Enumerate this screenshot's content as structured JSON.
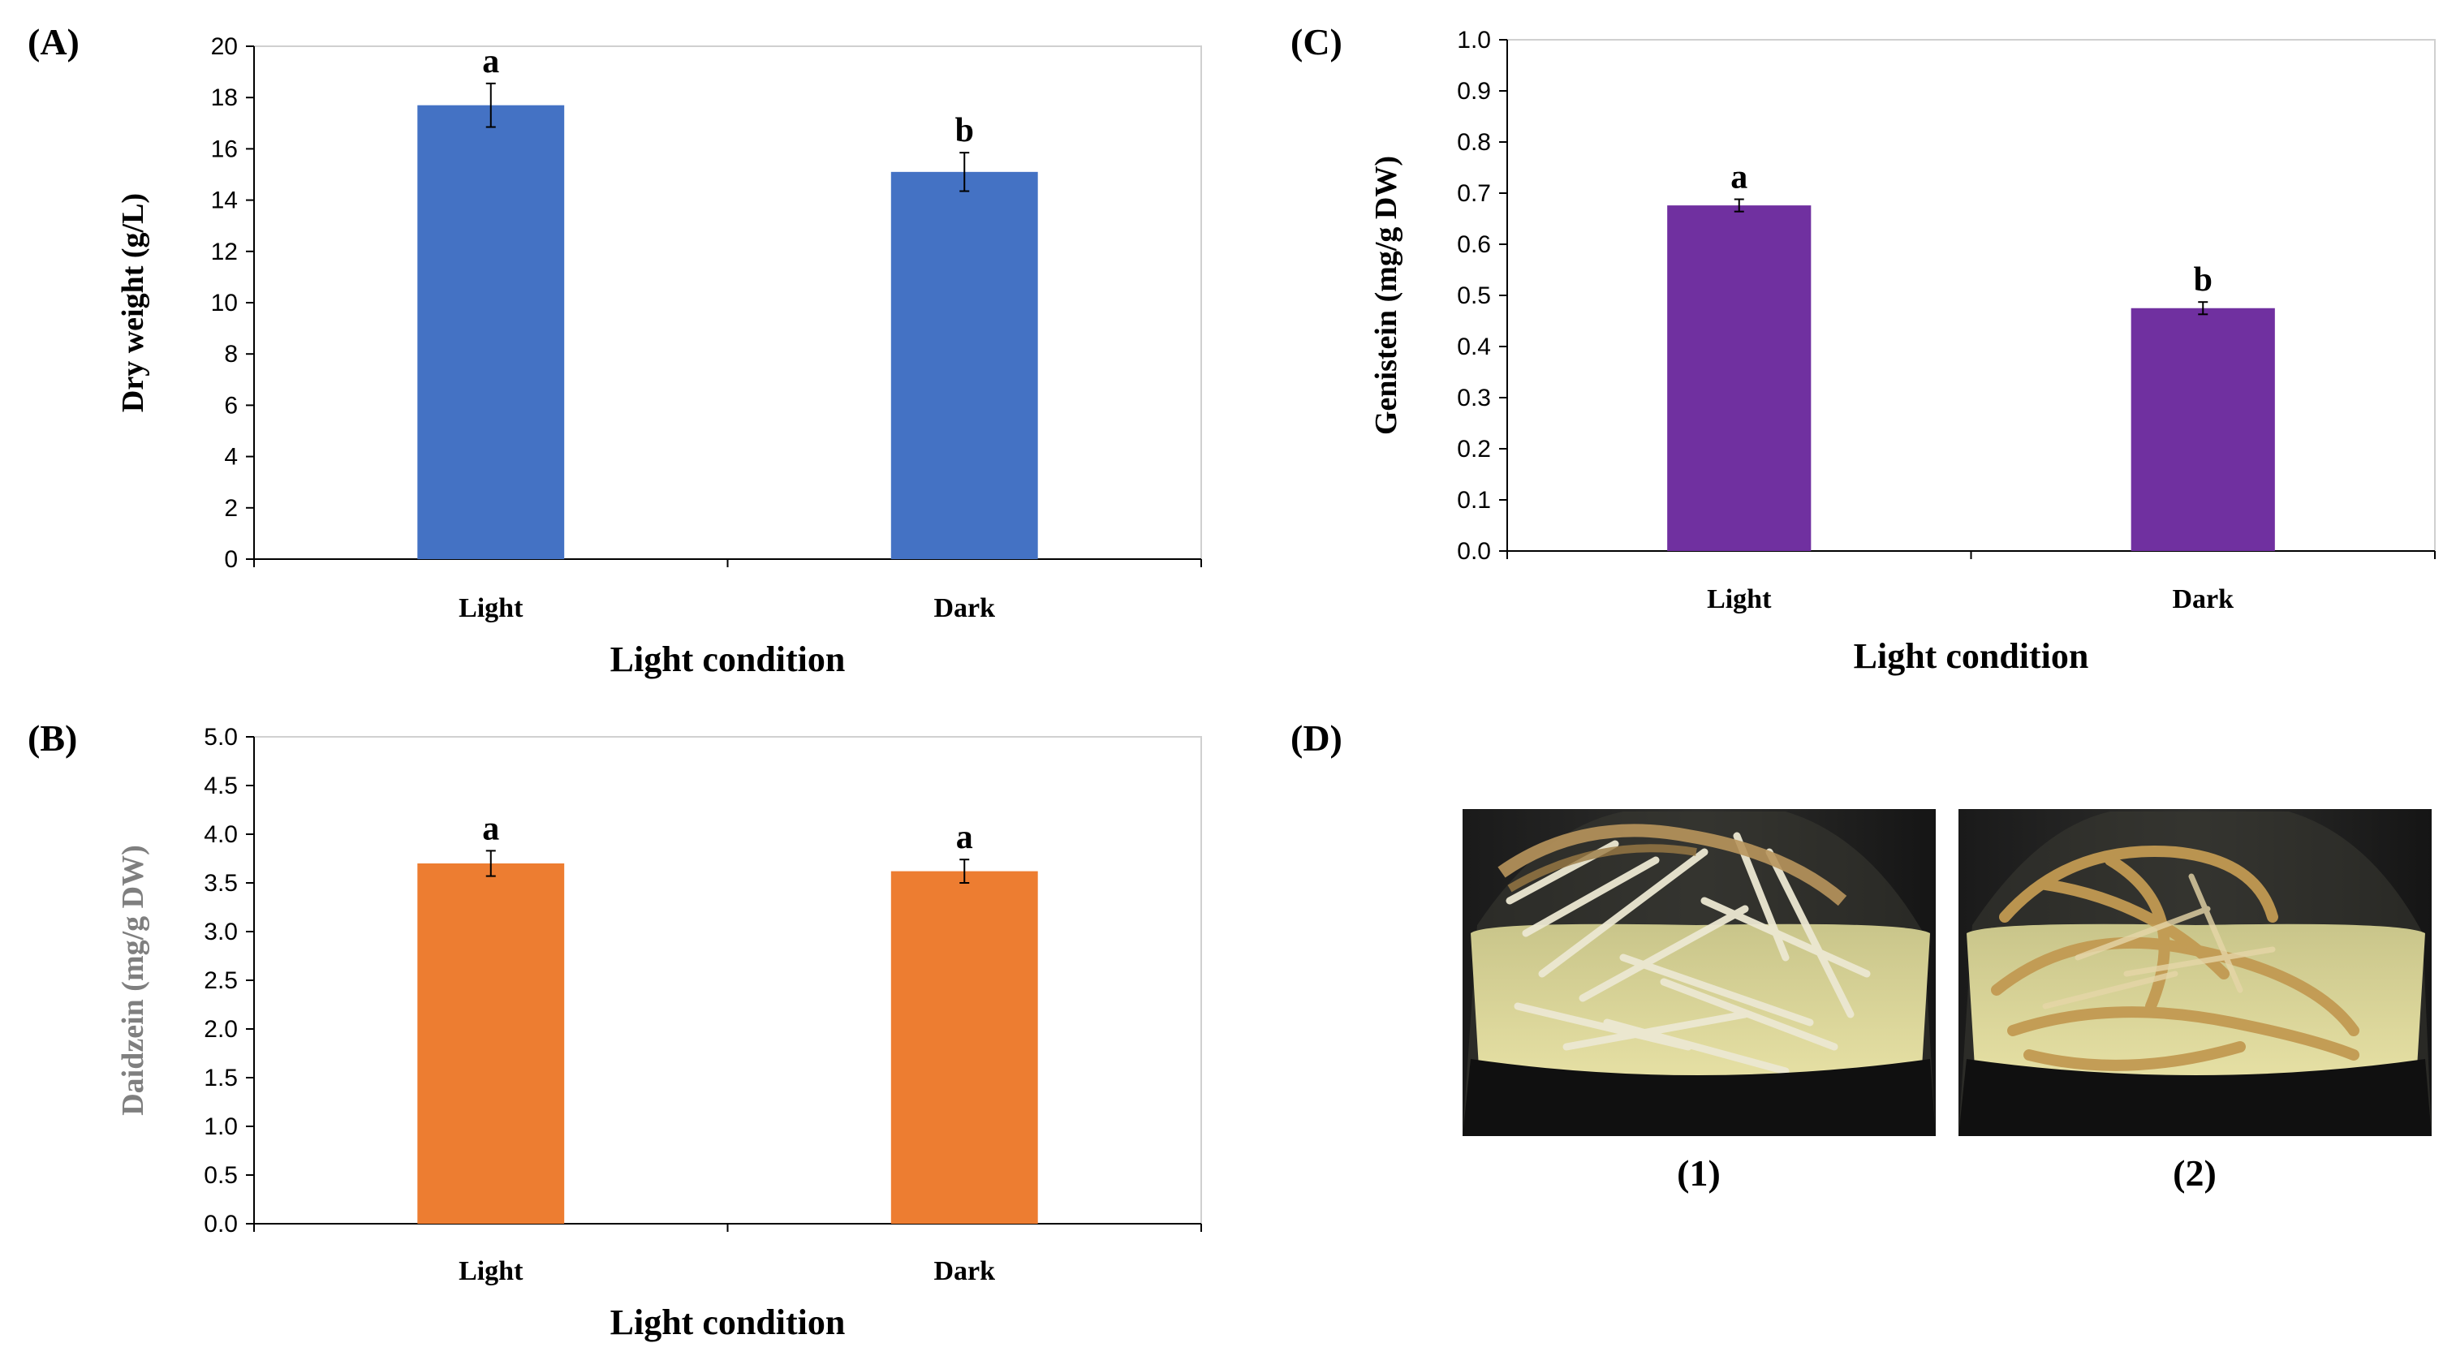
{
  "chart_data": [
    {
      "panel": "(A)",
      "type": "bar",
      "categories": [
        "Light",
        "Dark"
      ],
      "values": [
        17.7,
        15.1
      ],
      "errors": [
        0.85,
        0.75
      ],
      "significance": [
        "a",
        "b"
      ],
      "ylabel": "Dry weight (g/L)",
      "xlabel": "Light condition",
      "ylim": [
        0,
        20
      ],
      "yticks": [
        "0",
        "2",
        "4",
        "6",
        "8",
        "10",
        "12",
        "14",
        "16",
        "18",
        "20"
      ],
      "color": "#4472c4",
      "ylabel_color": "#000000"
    },
    {
      "panel": "(B)",
      "type": "bar",
      "categories": [
        "Light",
        "Dark"
      ],
      "values": [
        3.7,
        3.62
      ],
      "errors": [
        0.13,
        0.12
      ],
      "significance": [
        "a",
        "a"
      ],
      "ylabel": "Daidzein (mg/g DW)",
      "xlabel": "Light condition",
      "ylim": [
        0,
        5
      ],
      "yticks": [
        "0.0",
        "0.5",
        "1.0",
        "1.5",
        "2.0",
        "2.5",
        "3.0",
        "3.5",
        "4.0",
        "4.5",
        "5.0"
      ],
      "color": "#ed7d31",
      "ylabel_color": "#7f7f7f"
    },
    {
      "panel": "(C)",
      "type": "bar",
      "categories": [
        "Light",
        "Dark"
      ],
      "values": [
        0.676,
        0.475
      ],
      "errors": [
        0.012,
        0.012
      ],
      "significance": [
        "a",
        "b"
      ],
      "ylabel": "Genistein (mg/g DW)",
      "xlabel": "Light condition",
      "ylim": [
        0,
        1
      ],
      "yticks": [
        "0.0",
        "0.1",
        "0.2",
        "0.3",
        "0.4",
        "0.5",
        "0.6",
        "0.7",
        "0.8",
        "0.9",
        "1.0"
      ],
      "color": "#7030a0",
      "ylabel_color": "#000000"
    }
  ],
  "photos": {
    "panel": "(D)",
    "captions": [
      "(1)",
      "(2)"
    ]
  }
}
